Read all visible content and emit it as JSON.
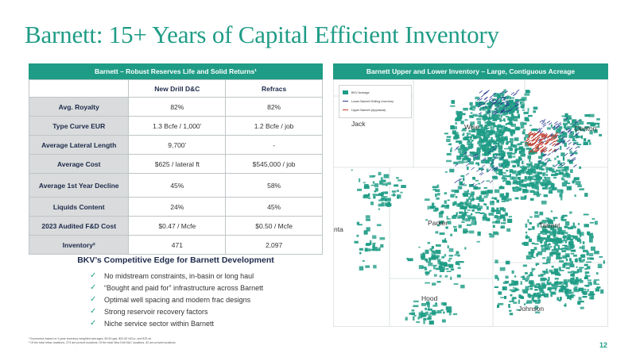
{
  "slide": {
    "title": "Barnett: 15+ Years of Capital Efficient Inventory",
    "page_number": "12",
    "colors": {
      "brand_teal": "#1f9c86",
      "navy": "#1d2a4a",
      "lower_line": "#2a3b8f",
      "upper_line": "#c0392b"
    }
  },
  "table": {
    "header": "Barnett – Robust Reserves Life and Solid Returns¹",
    "columns": [
      "",
      "New Drill D&C",
      "Refracs"
    ],
    "rows": [
      {
        "label": "Avg. Royalty",
        "drill": "82%",
        "refrac": "82%"
      },
      {
        "label": "Type Curve EUR",
        "drill": "1.3 Bcfe / 1,000’",
        "refrac": "1.2 Bcfe / job"
      },
      {
        "label": "Average Lateral Length",
        "drill": "9,700’",
        "refrac": "-"
      },
      {
        "label": "Average Cost",
        "drill": "$625 / lateral ft",
        "refrac": "$545,000 / job"
      },
      {
        "label": "Average 1st Year Decline",
        "drill": "45%",
        "refrac": "58%"
      },
      {
        "label": "Liquids Content",
        "drill": "24%",
        "refrac": "45%"
      },
      {
        "label": "2023 Audited F&D Cost",
        "drill": "$0.47 / Mcfe",
        "refrac": "$0.50 / Mcfe"
      },
      {
        "label": "Inventory²",
        "drill": "471",
        "refrac": "2,097"
      }
    ]
  },
  "edge": {
    "title": "BKV’s Competitive Edge for Barnett Development",
    "items": [
      "No midstream constraints, in-basin or long haul",
      "“Bought and paid for” infrastructure across Barnett",
      "Optimal well spacing and modern frac designs",
      "Strong reservoir recovery factors",
      "Niche service sector within Barnett"
    ]
  },
  "footnotes": [
    "¹ Economics based on 3-year inventory weighted averages, $3.50 gas, $22.50 NGLs, and $75 oil.",
    "² Of the total refrac locations, 373 are proved locations. Of the total New Drill D&C locations, 62 are proved locations."
  ],
  "map": {
    "header": "Barnett Upper and Lower Inventory – Large, Contiguous Acreage",
    "legend": [
      "BKV Acreage",
      "Lower Barnett Drilling Inventory",
      "Upper Barnett (Appraisal)"
    ],
    "counties": [
      "Jack",
      "Wise",
      "Denton",
      "Parker",
      "Tarrant",
      "Hood",
      "Johnson",
      "nta"
    ]
  }
}
